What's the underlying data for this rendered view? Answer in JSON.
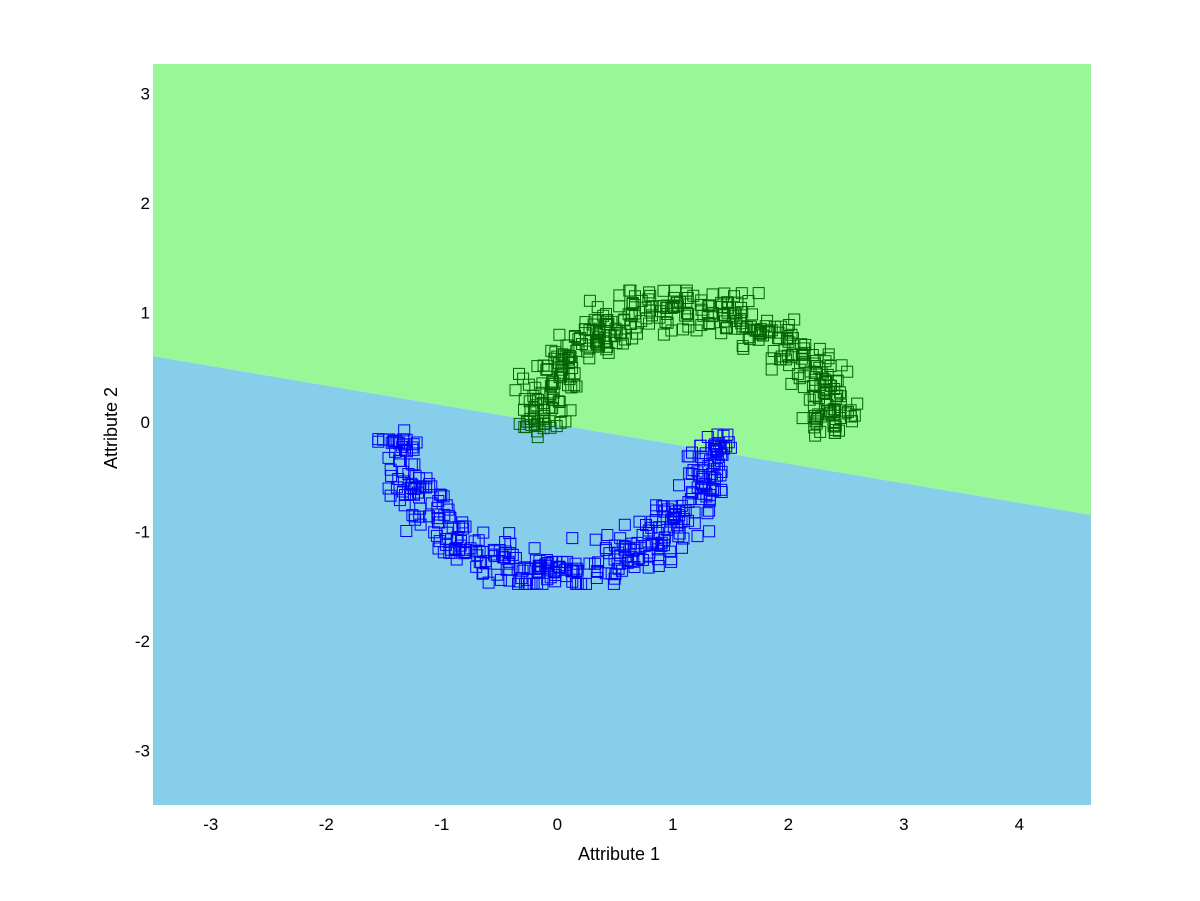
{
  "chart_data": {
    "type": "scatter",
    "title": "",
    "xlabel": "Attribute 1",
    "ylabel": "Attribute 2",
    "xlim": [
      -3.5,
      4.62
    ],
    "ylim": [
      -3.5,
      3.27
    ],
    "xticks": [
      -3,
      -2,
      -1,
      0,
      1,
      2,
      3,
      4
    ],
    "yticks": [
      -3,
      -2,
      -1,
      0,
      1,
      2,
      3
    ],
    "grid": false,
    "legend": "none",
    "marker": "square-open",
    "decision_boundary": {
      "points": [
        [
          -3.5,
          0.6
        ],
        [
          4.62,
          -0.85
        ]
      ],
      "colors": {
        "above": "#98F898",
        "below": "#87CEEB"
      }
    },
    "series": [
      {
        "color": "#0000FF",
        "shape": "lower-moon",
        "arc_center": [
          0.0,
          0.0
        ],
        "arc_radius": 1.38,
        "arc_angle_deg": [
          185,
          355
        ],
        "noise": 0.1,
        "count": 400,
        "x_range": [
          -1.55,
          1.52
        ],
        "y_range": [
          -1.48,
          0.02
        ]
      },
      {
        "color": "#006400",
        "shape": "upper-moon",
        "arc_center": [
          1.12,
          -0.28
        ],
        "arc_radius": 1.32,
        "arc_angle_deg": [
          8,
          172
        ],
        "noise": 0.1,
        "count": 400,
        "x_range": [
          -0.4,
          2.62
        ],
        "y_range": [
          -0.3,
          1.2
        ]
      }
    ]
  }
}
